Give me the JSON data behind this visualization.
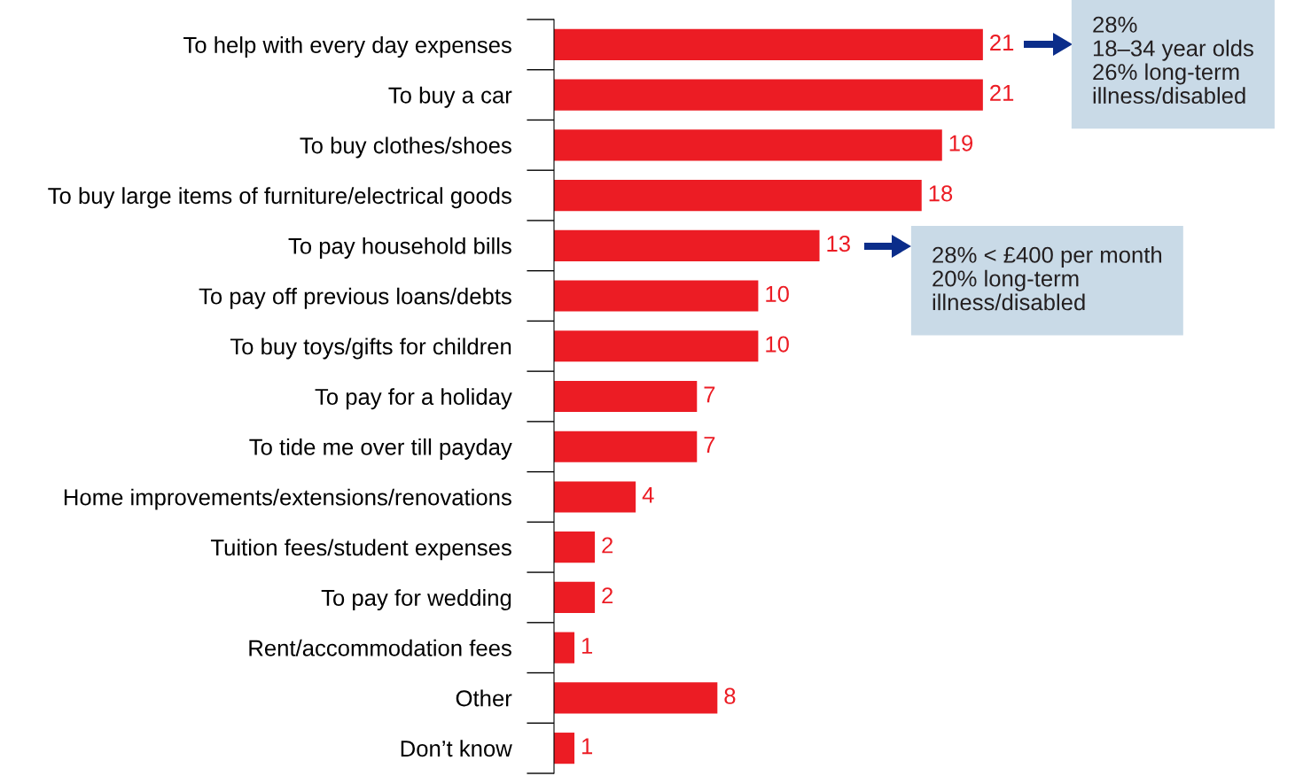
{
  "chart_data": {
    "type": "bar",
    "orientation": "horizontal",
    "data_labels": true,
    "color": "#ec1c24",
    "categories": [
      "To help with every day expenses",
      "To buy a car",
      "To buy clothes/shoes",
      "To buy large items of furniture/electrical goods",
      "To pay household bills",
      "To pay off previous loans/debts",
      "To buy toys/gifts for children",
      "To pay for a holiday",
      "To tide me over till payday",
      "Home improvements/extensions/renovations",
      "Tuition fees/student expenses",
      "To pay for wedding",
      "Rent/accommodation fees",
      "Other",
      "Don’t know"
    ],
    "values": [
      21,
      21,
      19,
      18,
      13,
      10,
      10,
      7,
      7,
      4,
      2,
      2,
      1,
      8,
      1
    ],
    "annotations": [
      "28%\n18–34 year olds\n26% long-term\nillness/disabled",
      "28% < £400 per month\n20% long-term\nillness/disabled"
    ]
  }
}
